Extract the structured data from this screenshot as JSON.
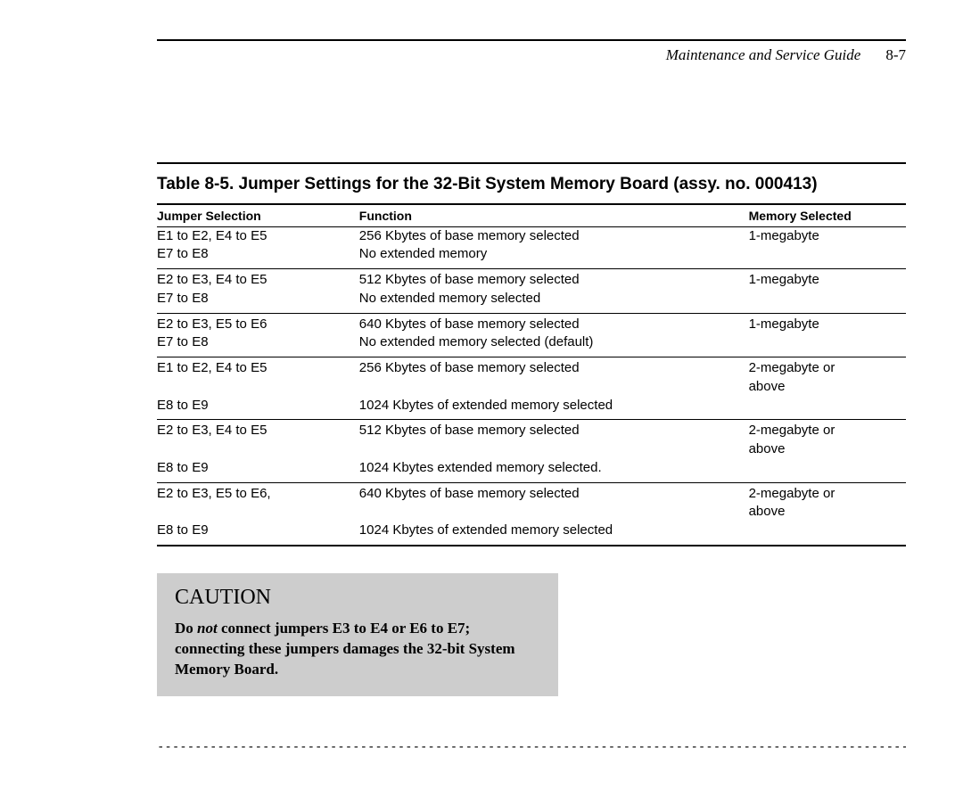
{
  "header": {
    "running_title": "Maintenance and Service Guide",
    "page_number": "8-7"
  },
  "table": {
    "title": "Table 8-5. Jumper Settings for the 32-Bit System Memory Board (assy. no. 000413)",
    "columns": [
      "Jumper Selection",
      "Function",
      "Memory Selected"
    ],
    "groups": [
      {
        "rows": [
          [
            "E1 to E2, E4 to E5",
            "256 Kbytes of base memory selected",
            "1-megabyte"
          ],
          [
            "E7 to E8",
            "No extended memory",
            ""
          ]
        ]
      },
      {
        "rows": [
          [
            "E2 to E3, E4 to E5",
            "512 Kbytes of base memory selected",
            "1-megabyte"
          ],
          [
            "E7 to E8",
            "No extended memory selected",
            ""
          ]
        ]
      },
      {
        "rows": [
          [
            "E2 to E3, E5 to E6",
            "640 Kbytes of base memory selected",
            "1-megabyte"
          ],
          [
            "E7 to E8",
            "No extended memory selected (default)",
            ""
          ]
        ]
      },
      {
        "rows": [
          [
            "E1 to E2, E4 to E5",
            "256 Kbytes of base memory selected",
            "2-megabyte or"
          ],
          [
            "",
            "",
            "above"
          ],
          [
            "E8 to E9",
            "1024 Kbytes of extended memory selected",
            ""
          ]
        ]
      },
      {
        "rows": [
          [
            "E2 to E3, E4 to E5",
            "512 Kbytes of base memory selected",
            "2-megabyte or"
          ],
          [
            "",
            "",
            "above"
          ],
          [
            "E8 to E9",
            "1024 Kbytes extended memory selected.",
            ""
          ]
        ]
      },
      {
        "rows": [
          [
            "E2 to E3, E5 to E6,",
            "640 Kbytes of base memory selected",
            "2-megabyte or"
          ],
          [
            "",
            "",
            "above"
          ],
          [
            "E8 to E9",
            "1024 Kbytes of extended memory selected",
            ""
          ]
        ]
      }
    ]
  },
  "caution": {
    "title": "CAUTION",
    "body_pre": "Do ",
    "body_not": "not",
    "body_post": " connect jumpers E3 to E4 or E6 to E7; connecting these jumpers damages the 32-bit System Memory Board."
  },
  "footer": {
    "dashes": "-------------------------------------------------------------------------------------------------------------------------------"
  }
}
